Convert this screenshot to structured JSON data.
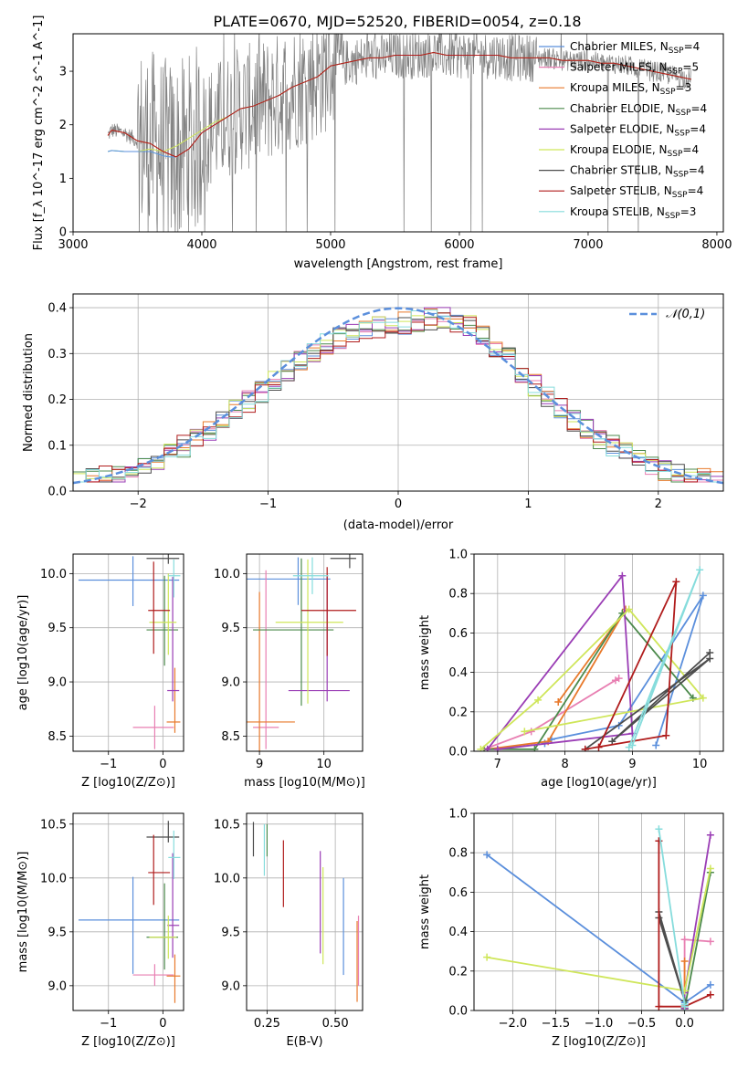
{
  "page_title": "PLATE=0670, MJD=52520, FIBERID=0054, z=0.18",
  "series_styles": [
    {
      "name": "Chabrier MILES",
      "nssp": "4",
      "color": "#5b8fdc"
    },
    {
      "name": "Salpeter MILES",
      "nssp": "5",
      "color": "#e87fb2"
    },
    {
      "name": "Kroupa MILES",
      "nssp": "3",
      "color": "#e8792b"
    },
    {
      "name": "Chabrier ELODIE",
      "nssp": "4",
      "color": "#4c8a4c"
    },
    {
      "name": "Salpeter ELODIE",
      "nssp": "4",
      "color": "#9a3db5"
    },
    {
      "name": "Kroupa ELODIE",
      "nssp": "4",
      "color": "#cfe65a"
    },
    {
      "name": "Chabrier STELIB",
      "nssp": "4",
      "color": "#4d4d4d"
    },
    {
      "name": "Salpeter STELIB",
      "nssp": "4",
      "color": "#b01c1c"
    },
    {
      "name": "Kroupa STELIB",
      "nssp": "3",
      "color": "#86dcdc"
    }
  ],
  "chart_data": [
    {
      "id": "spectrum",
      "type": "line",
      "title": "PLATE=0670, MJD=52520, FIBERID=0054, z=0.18",
      "xlabel": "wavelength [Angstrom, rest frame]",
      "ylabel": "Flux [f_λ 10^-17 erg cm^-2 s^-1 A^-1]",
      "xlim": [
        3000,
        8050
      ],
      "ylim": [
        0,
        3.7
      ],
      "xticks": [
        3000,
        4000,
        5000,
        6000,
        7000,
        8000
      ],
      "yticks": [
        0,
        1,
        2,
        3
      ],
      "legend_position": "top-right",
      "data_color": "#808080",
      "model_wavelength": [
        3270,
        3300,
        3400,
        3500,
        3600,
        3700,
        3750,
        3800,
        3900,
        4000,
        4100,
        4200,
        4300,
        4400,
        4500,
        4600,
        4700,
        4800,
        4900,
        5000,
        5100,
        5200,
        5300,
        5400,
        5500,
        5600,
        5700,
        5800,
        5900,
        6000,
        6100,
        6200,
        6300,
        6400,
        6500,
        6600,
        6700,
        6800,
        6900,
        7000,
        7100,
        7200,
        7300,
        7400,
        7500,
        7600,
        7700,
        7800
      ],
      "model_flux_red": [
        1.8,
        1.9,
        1.85,
        1.7,
        1.65,
        1.5,
        1.45,
        1.4,
        1.55,
        1.85,
        2.0,
        2.15,
        2.3,
        2.35,
        2.45,
        2.55,
        2.7,
        2.8,
        2.9,
        3.1,
        3.15,
        3.2,
        3.25,
        3.25,
        3.3,
        3.3,
        3.3,
        3.35,
        3.3,
        3.3,
        3.3,
        3.3,
        3.3,
        3.25,
        3.25,
        3.25,
        3.25,
        3.2,
        3.2,
        3.2,
        3.15,
        3.15,
        3.1,
        3.05,
        3.0,
        2.95,
        2.9,
        2.85
      ],
      "model_flux_blue": [
        1.5,
        1.52,
        1.5,
        1.5,
        1.5,
        1.42,
        1.4,
        1.4,
        1.55,
        1.85,
        2.0,
        2.15,
        2.3,
        2.35,
        2.45,
        2.55,
        2.7,
        2.8,
        2.9,
        3.1,
        3.15,
        3.2,
        3.25,
        3.25,
        3.3,
        3.3,
        3.3,
        3.35,
        3.3,
        3.3,
        3.3,
        3.3,
        3.3,
        3.25,
        3.25,
        3.25,
        3.25,
        3.2,
        3.2,
        3.2,
        3.15,
        3.15,
        3.1,
        3.05,
        3.0,
        2.95,
        2.9,
        2.85
      ],
      "model_flux_yellow": [
        1.5,
        1.52,
        1.5,
        1.5,
        1.55,
        1.5,
        1.55,
        1.6,
        1.75,
        1.9,
        2.05,
        2.15,
        2.3,
        2.35,
        2.45,
        2.55,
        2.7,
        2.8,
        2.9,
        3.1,
        3.15,
        3.2,
        3.25,
        3.25,
        3.3,
        3.3,
        3.3,
        3.35,
        3.3,
        3.3,
        3.3,
        3.3,
        3.3,
        3.25,
        3.25,
        3.25,
        3.25,
        3.2,
        3.2,
        3.2,
        3.15,
        3.15,
        3.1,
        3.05,
        3.0,
        2.95,
        2.9,
        2.85
      ]
    },
    {
      "id": "residuals",
      "type": "histogram",
      "xlabel": "(data-model)/error",
      "ylabel": "Normed distribution",
      "xlim": [
        -2.5,
        2.5
      ],
      "ylim": [
        0,
        0.43
      ],
      "xticks": [
        -2,
        -1,
        0,
        1,
        2
      ],
      "yticks": [
        0.0,
        0.1,
        0.2,
        0.3,
        0.4
      ],
      "legend": "𝒩(0,1)",
      "legend_position": "top-right",
      "bins": [
        -2.5,
        2.5,
        50
      ],
      "reference_curve": "normal(0,1)"
    },
    {
      "id": "age-vs-Z",
      "type": "errorbar",
      "xlabel": "Z [log10(Z/Z⊙)]",
      "ylabel": "age [log10(age/yr)]",
      "xlim": [
        -1.65,
        0.38
      ],
      "ylim": [
        8.36,
        10.18
      ],
      "xticks": [
        -1,
        0
      ],
      "yticks": [
        8.5,
        9.0,
        9.5,
        10.0
      ],
      "points": [
        {
          "x": -0.55,
          "xerr": [
            1.0,
            0.85
          ],
          "y": 9.94,
          "yerr": [
            0.24,
            0.22
          ]
        },
        {
          "x": -0.15,
          "xerr": [
            0.4,
            0.35
          ],
          "y": 8.58,
          "yerr": [
            0.2,
            0.2
          ]
        },
        {
          "x": 0.22,
          "xerr": [
            0.15,
            0.1
          ],
          "y": 8.63,
          "yerr": [
            0.1,
            0.5
          ]
        },
        {
          "x": 0.03,
          "xerr": [
            0.33,
            0.25
          ],
          "y": 9.48,
          "yerr": [
            0.33,
            0.5
          ]
        },
        {
          "x": 0.18,
          "xerr": [
            0.1,
            0.12
          ],
          "y": 8.92,
          "yerr": [
            0.1,
            1.05
          ]
        },
        {
          "x": 0.1,
          "xerr": [
            0.35,
            0.15
          ],
          "y": 9.55,
          "yerr": [
            0.3,
            0.45
          ]
        },
        {
          "x": 0.1,
          "xerr": [
            0.4,
            0.2
          ],
          "y": 10.14,
          "yerr": [
            0.05,
            0.04
          ]
        },
        {
          "x": -0.17,
          "xerr": [
            0.1,
            0.3
          ],
          "y": 9.66,
          "yerr": [
            0.4,
            0.45
          ]
        },
        {
          "x": 0.2,
          "xerr": [
            0.1,
            0.12
          ],
          "y": 9.98,
          "yerr": [
            0.2,
            0.15
          ]
        }
      ]
    },
    {
      "id": "age-vs-mass",
      "type": "errorbar",
      "xlabel": "mass [log10(M/M⊙)]",
      "ylabel": "",
      "xlim": [
        8.8,
        10.6
      ],
      "ylim": [
        8.36,
        10.18
      ],
      "xticks": [
        9,
        10
      ],
      "yticks": [
        8.5,
        9.0,
        9.5,
        10.0
      ],
      "points": [
        {
          "x": 9.6,
          "xerr": [
            0.8,
            0.5
          ],
          "y": 9.95,
          "yerr": [
            0.24,
            0.2
          ]
        },
        {
          "x": 9.1,
          "xerr": [
            0.2,
            0.2
          ],
          "y": 8.58,
          "yerr": [
            0.2,
            1.45
          ]
        },
        {
          "x": 9.0,
          "xerr": [
            0.2,
            0.55
          ],
          "y": 8.63,
          "yerr": [
            0.27,
            1.2
          ]
        },
        {
          "x": 9.65,
          "xerr": [
            0.75,
            0.5
          ],
          "y": 9.48,
          "yerr": [
            0.7,
            0.66
          ]
        },
        {
          "x": 10.05,
          "xerr": [
            0.6,
            0.35
          ],
          "y": 8.92,
          "yerr": [
            0.1,
            1.05
          ]
        },
        {
          "x": 9.75,
          "xerr": [
            0.5,
            0.55
          ],
          "y": 9.55,
          "yerr": [
            0.75,
            0.58
          ]
        },
        {
          "x": 10.4,
          "xerr": [
            0.3,
            0.1
          ],
          "y": 10.14,
          "yerr": [
            0.09,
            0.05
          ]
        },
        {
          "x": 10.05,
          "xerr": [
            0.4,
            0.45
          ],
          "y": 9.66,
          "yerr": [
            0.42,
            0.4
          ]
        },
        {
          "x": 9.82,
          "xerr": [
            0.3,
            0.25
          ],
          "y": 9.98,
          "yerr": [
            0.17,
            0.17
          ]
        }
      ]
    },
    {
      "id": "weights-vs-age",
      "type": "line",
      "xlabel": "age [log10(age/yr)]",
      "ylabel": "mass weight",
      "xlim": [
        6.65,
        10.35
      ],
      "ylim": [
        0,
        1.0
      ],
      "xticks": [
        7,
        8,
        9,
        10
      ],
      "yticks": [
        0.0,
        0.2,
        0.4,
        0.6,
        0.8,
        1.0
      ],
      "series": [
        {
          "x": [
            7.7,
            7.8,
            8.8,
            10.05,
            9.35
          ],
          "y": [
            0.04,
            0.06,
            0.13,
            0.79,
            0.03
          ]
        },
        {
          "x": [
            6.8,
            7.5,
            8.75,
            8.8
          ],
          "y": [
            0.01,
            0.1,
            0.36,
            0.37
          ]
        },
        {
          "x": [
            6.85,
            7.75,
            8.9,
            7.9
          ],
          "y": [
            0.01,
            0.05,
            0.72,
            0.25
          ]
        },
        {
          "x": [
            6.8,
            7.55,
            8.85,
            9.9
          ],
          "y": [
            0.01,
            0.01,
            0.7,
            0.27
          ]
        },
        {
          "x": [
            6.85,
            8.85,
            9.0,
            7.0
          ],
          "y": [
            0.01,
            0.89,
            0.09,
            0.01
          ]
        },
        {
          "x": [
            6.75,
            7.6,
            8.95,
            10.05,
            7.4
          ],
          "y": [
            0.01,
            0.26,
            0.72,
            0.27,
            0.1
          ]
        },
        {
          "x": [
            8.3,
            10.15,
            8.7,
            10.15
          ],
          "y": [
            0.01,
            0.47,
            0.05,
            0.5
          ]
        },
        {
          "x": [
            8.3,
            9.5,
            9.65,
            8.5
          ],
          "y": [
            0.01,
            0.08,
            0.86,
            0.02
          ]
        },
        {
          "x": [
            8.95,
            10.0,
            9.0
          ],
          "y": [
            0.02,
            0.92,
            0.03
          ]
        }
      ]
    },
    {
      "id": "mass-vs-Z",
      "type": "errorbar",
      "xlabel": "Z [log10(Z/Z⊙)]",
      "ylabel": "mass [log10(M/M⊙)]",
      "xlim": [
        -1.65,
        0.38
      ],
      "ylim": [
        8.77,
        10.6
      ],
      "xticks": [
        -1,
        0
      ],
      "yticks": [
        9.0,
        9.5,
        10.0,
        10.5
      ],
      "points": [
        {
          "x": -0.55,
          "xerr": [
            1.0,
            0.85
          ],
          "y": 9.61,
          "yerr": [
            0.5,
            0.4
          ]
        },
        {
          "x": -0.15,
          "xerr": [
            0.4,
            0.35
          ],
          "y": 9.1,
          "yerr": [
            0.1,
            0.1
          ]
        },
        {
          "x": 0.22,
          "xerr": [
            0.15,
            0.1
          ],
          "y": 9.09,
          "yerr": [
            0.25,
            0.2
          ]
        },
        {
          "x": 0.03,
          "xerr": [
            0.33,
            0.25
          ],
          "y": 9.45,
          "yerr": [
            0.3,
            0.5
          ]
        },
        {
          "x": 0.18,
          "xerr": [
            0.1,
            0.12
          ],
          "y": 9.56,
          "yerr": [
            0.3,
            0.67
          ]
        },
        {
          "x": 0.1,
          "xerr": [
            0.35,
            0.15
          ],
          "y": 9.45,
          "yerr": [
            0.2,
            0.2
          ]
        },
        {
          "x": 0.1,
          "xerr": [
            0.4,
            0.2
          ],
          "y": 10.38,
          "yerr": [
            0.05,
            0.15
          ]
        },
        {
          "x": -0.17,
          "xerr": [
            0.1,
            0.3
          ],
          "y": 10.05,
          "yerr": [
            0.3,
            0.35
          ]
        },
        {
          "x": 0.2,
          "xerr": [
            0.1,
            0.12
          ],
          "y": 10.19,
          "yerr": [
            0.2,
            0.25
          ]
        }
      ]
    },
    {
      "id": "mass-vs-EBV",
      "type": "errorbar",
      "xlabel": "E(B-V)",
      "ylabel": "",
      "xlim": [
        0.175,
        0.6
      ],
      "ylim": [
        8.77,
        10.6
      ],
      "xticks": [
        0.25,
        0.5
      ],
      "yticks": [
        9.0,
        9.5,
        10.0,
        10.5
      ],
      "points": [
        {
          "x": 0.53,
          "y": 9.6,
          "yerr": [
            0.5,
            0.4
          ]
        },
        {
          "x": 0.585,
          "y": 9.3,
          "yerr": [
            0.3,
            0.35
          ]
        },
        {
          "x": 0.58,
          "y": 9.2,
          "yerr": [
            0.35,
            0.4
          ]
        },
        {
          "x": 0.25,
          "y": 10.3,
          "yerr": [
            0.1,
            0.2
          ]
        },
        {
          "x": 0.445,
          "y": 9.75,
          "yerr": [
            0.45,
            0.5
          ]
        },
        {
          "x": 0.455,
          "y": 9.62,
          "yerr": [
            0.42,
            0.48
          ]
        },
        {
          "x": 0.2,
          "y": 10.35,
          "yerr": [
            0.15,
            0.17
          ]
        },
        {
          "x": 0.31,
          "y": 10.03,
          "yerr": [
            0.3,
            0.32
          ]
        },
        {
          "x": 0.24,
          "y": 10.2,
          "yerr": [
            0.18,
            0.3
          ]
        }
      ]
    },
    {
      "id": "weights-vs-Z",
      "type": "line",
      "xlabel": "Z [log10(Z/Z⊙)]",
      "ylabel": "mass weight",
      "xlim": [
        -2.45,
        0.45
      ],
      "ylim": [
        0,
        1.0
      ],
      "xticks": [
        -2.0,
        -1.5,
        -1.0,
        -0.5,
        0.0
      ],
      "yticks": [
        0.0,
        0.2,
        0.4,
        0.6,
        0.8,
        1.0
      ],
      "series": [
        {
          "x": [
            -2.3,
            0.0,
            0.3
          ],
          "y": [
            0.79,
            0.04,
            0.13
          ]
        },
        {
          "x": [
            0.0,
            0.0,
            0.3
          ],
          "y": [
            0.01,
            0.36,
            0.35
          ]
        },
        {
          "x": [
            0.0,
            0.0,
            0.0
          ],
          "y": [
            0.05,
            0.25,
            0.01
          ]
        },
        {
          "x": [
            0.0,
            0.0,
            0.3
          ],
          "y": [
            0.01,
            0.01,
            0.7
          ]
        },
        {
          "x": [
            0.0,
            0.0,
            0.3
          ],
          "y": [
            0.01,
            0.09,
            0.89
          ]
        },
        {
          "x": [
            -2.3,
            0.0,
            0.3
          ],
          "y": [
            0.27,
            0.1,
            0.72
          ]
        },
        {
          "x": [
            -0.3,
            0.0,
            -0.3
          ],
          "y": [
            0.47,
            0.05,
            0.5
          ]
        },
        {
          "x": [
            -0.3,
            -0.3,
            0.0,
            0.3
          ],
          "y": [
            0.86,
            0.02,
            0.02,
            0.08
          ]
        },
        {
          "x": [
            -0.3,
            0.0,
            0.0
          ],
          "y": [
            0.92,
            0.03,
            0.02
          ]
        }
      ]
    }
  ]
}
